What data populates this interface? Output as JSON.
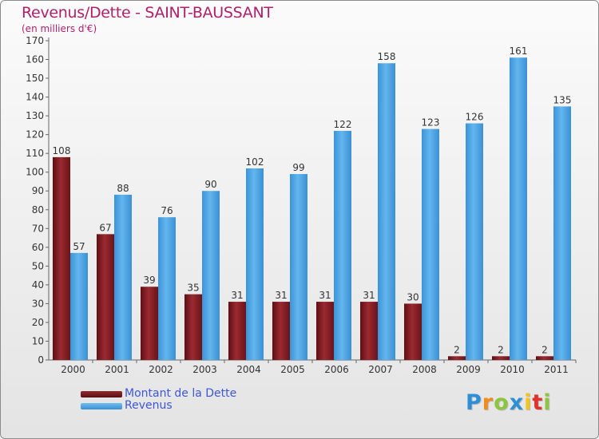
{
  "header": {
    "title": "Revenus/Dette - SAINT-BAUSSANT",
    "subtitle": "(en milliers d'€)"
  },
  "chart_data": {
    "type": "bar",
    "title": "Revenus/Dette - SAINT-BAUSSANT",
    "ylabel": "(en milliers d'€)",
    "xlabel": "",
    "ylim": [
      0,
      170
    ],
    "y_ticks": [
      0,
      10,
      20,
      30,
      40,
      50,
      60,
      70,
      80,
      90,
      100,
      110,
      120,
      130,
      140,
      150,
      160,
      170
    ],
    "grid": false,
    "legend_position": "bottom-left",
    "categories": [
      "2000",
      "2001",
      "2002",
      "2003",
      "2004",
      "2005",
      "2006",
      "2007",
      "2008",
      "2009",
      "2010",
      "2011"
    ],
    "series": [
      {
        "name": "Montant de la Dette",
        "color": "#7a1a1f",
        "values": [
          108,
          67,
          39,
          35,
          31,
          31,
          31,
          31,
          30,
          2,
          2,
          2
        ]
      },
      {
        "name": "Revenus",
        "color": "#4aa3e2",
        "values": [
          57,
          88,
          76,
          90,
          102,
          99,
          122,
          158,
          123,
          126,
          161,
          135
        ]
      }
    ]
  },
  "legend": {
    "items": [
      {
        "label": "Montant de la Dette",
        "color": "#7a1a1f"
      },
      {
        "label": "Revenus",
        "color": "#4aa3e2"
      }
    ]
  },
  "logo": {
    "text": "Proxiti",
    "colors": [
      "#2f8fd6",
      "#f28a1c",
      "#8cc63f",
      "#2f8fd6",
      "#f2c41c",
      "#e0312c",
      "#8cc63f"
    ]
  }
}
